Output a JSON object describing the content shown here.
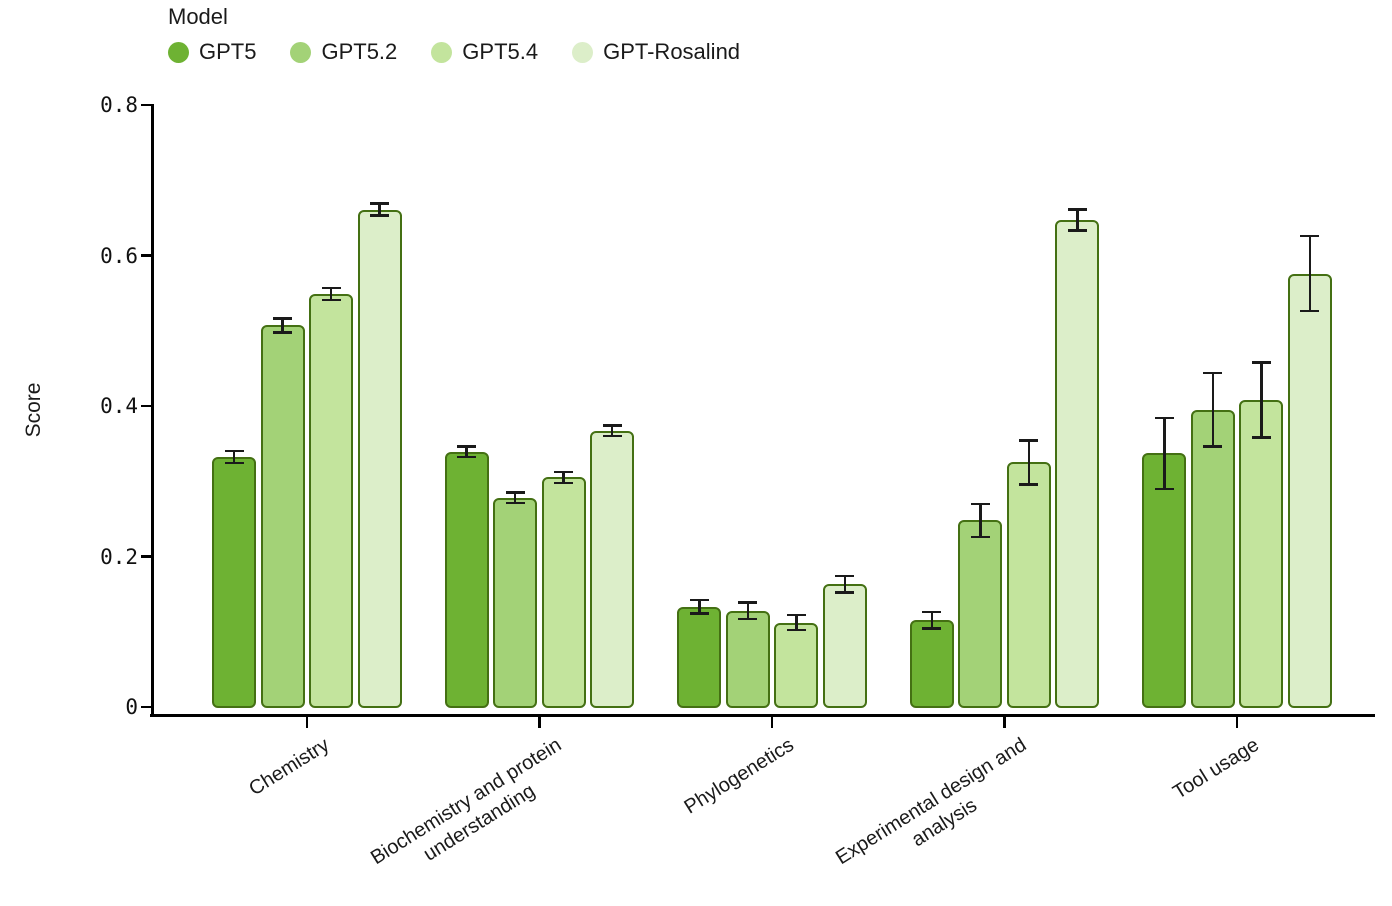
{
  "chart_data": {
    "type": "bar",
    "title": "",
    "xlabel": "",
    "ylabel": "Score",
    "ylim": [
      0,
      0.8
    ],
    "yticks": [
      0,
      0.2,
      0.4,
      0.6,
      0.8
    ],
    "ytick_labels": [
      "0",
      "0.2",
      "0.4",
      "0.6",
      "0.8"
    ],
    "grid": "off",
    "legend_title": "Model",
    "legend_position": "top-left",
    "categories": [
      "Chemistry",
      "Biochemistry and protein\nunderstanding",
      "Phylogenetics",
      "Experimental design and\nanalysis",
      "Tool usage"
    ],
    "series": [
      {
        "name": "GPT5",
        "color": "#6eb233",
        "values": [
          0.332,
          0.339,
          0.133,
          0.115,
          0.337
        ],
        "errors": [
          0.008,
          0.007,
          0.009,
          0.011,
          0.047
        ]
      },
      {
        "name": "GPT5.2",
        "color": "#a3d277",
        "values": [
          0.507,
          0.278,
          0.128,
          0.248,
          0.395
        ],
        "errors": [
          0.009,
          0.007,
          0.011,
          0.022,
          0.049
        ]
      },
      {
        "name": "GPT5.4",
        "color": "#c3e49d",
        "values": [
          0.549,
          0.305,
          0.112,
          0.325,
          0.408
        ],
        "errors": [
          0.008,
          0.007,
          0.01,
          0.029,
          0.05
        ]
      },
      {
        "name": "GPT-Rosalind",
        "color": "#dceec9",
        "values": [
          0.661,
          0.367,
          0.163,
          0.647,
          0.576
        ],
        "errors": [
          0.008,
          0.007,
          0.011,
          0.014,
          0.05
        ]
      }
    ],
    "style": {
      "bar_border_color": "#447013",
      "error_bar_color": "#1a1a1a",
      "axis_color": "#000000",
      "text_color": "#1a1a1a"
    }
  }
}
